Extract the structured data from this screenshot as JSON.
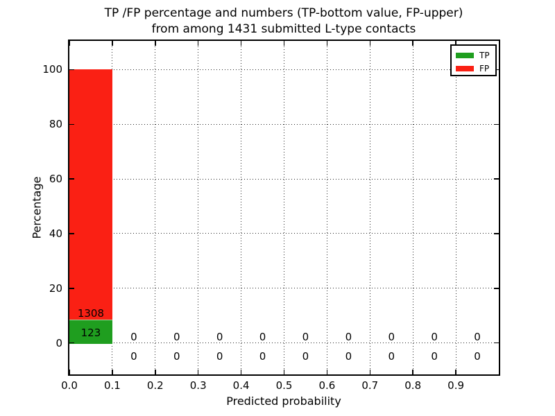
{
  "title": {
    "line1": "TP /FP percentage and numbers (TP-bottom value, FP-upper)",
    "line2": "from among 1431 submitted L-type contacts"
  },
  "legend": [
    {
      "label": "TP",
      "color": "#1f9e1f"
    },
    {
      "label": "FP",
      "color": "#fa2014"
    }
  ],
  "chart_data": {
    "type": "bar",
    "stacked": true,
    "title": "TP /FP percentage and numbers (TP-bottom value, FP-upper) from among 1431 submitted L-type contacts",
    "xlabel": "Predicted probability",
    "ylabel": "Percentage",
    "total_contacts": 1431,
    "bin_width": 0.1,
    "bin_starts": [
      0.0,
      0.1,
      0.2,
      0.3,
      0.4,
      0.5,
      0.6,
      0.7,
      0.8,
      0.9
    ],
    "x_tick_values": [
      0.0,
      0.1,
      0.2,
      0.3,
      0.4,
      0.5,
      0.6,
      0.7,
      0.8,
      0.9
    ],
    "x_tick_labels": [
      "0.0",
      "0.1",
      "0.2",
      "0.3",
      "0.4",
      "0.5",
      "0.6",
      "0.7",
      "0.8",
      "0.9"
    ],
    "y_ticks": [
      0,
      20,
      40,
      60,
      80,
      100
    ],
    "xlim": [
      0.0,
      1.0
    ],
    "ylim": [
      -11.5,
      110.5
    ],
    "grid": true,
    "grid_style": "dotted",
    "legend_position": "upper right",
    "series": [
      {
        "name": "TP",
        "color": "#1f9e1f",
        "counts": [
          123,
          0,
          0,
          0,
          0,
          0,
          0,
          0,
          0,
          0
        ]
      },
      {
        "name": "FP",
        "color": "#fa2014",
        "counts": [
          1308,
          0,
          0,
          0,
          0,
          0,
          0,
          0,
          0,
          0
        ]
      }
    ],
    "bin0_percentages": {
      "TP": 8.6,
      "FP": 91.4
    }
  }
}
